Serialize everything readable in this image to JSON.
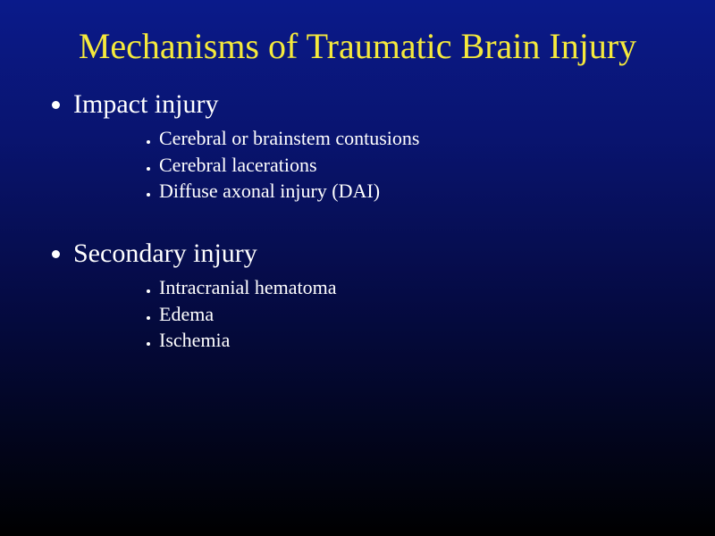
{
  "slide": {
    "title": "Mechanisms of Traumatic Brain Injury",
    "title_color": "#f5e93c",
    "text_color": "#ffffff",
    "background_gradient_top": "#0a1a8a",
    "background_gradient_bottom": "#000000",
    "title_fontsize": 40,
    "bullet_level1_fontsize": 30,
    "bullet_level2_fontsize": 22,
    "bullets": [
      {
        "label": "Impact injury",
        "children": [
          "Cerebral or brainstem contusions",
          "Cerebral lacerations",
          "Diffuse axonal injury (DAI)"
        ]
      },
      {
        "label": "Secondary injury",
        "children": [
          "Intracranial hematoma",
          "Edema",
          "Ischemia"
        ]
      }
    ]
  }
}
